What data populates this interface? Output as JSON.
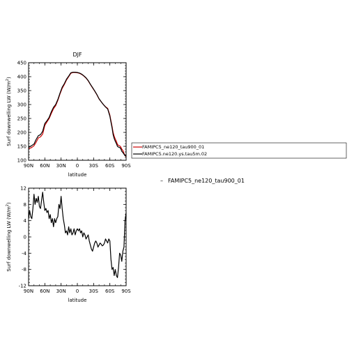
{
  "chart_data": [
    {
      "type": "line",
      "title": "DJF",
      "xlabel": "latitude",
      "ylabel": "Surf downwelling LW (W/m",
      "ylabel_sup": "2",
      "ylabel_end": ")",
      "xlim": [
        -90,
        90
      ],
      "ylim": [
        100,
        450
      ],
      "xticks": [
        -90,
        -60,
        -30,
        0,
        30,
        60,
        90
      ],
      "xtick_labels": [
        "90N",
        "60N",
        "30N",
        "0",
        "30S",
        "60S",
        "90S"
      ],
      "yticks": [
        100,
        150,
        200,
        250,
        300,
        350,
        400,
        450
      ],
      "ytick_labels": [
        "100",
        "150",
        "200",
        "250",
        "300",
        "350",
        "400",
        "450"
      ],
      "grid": false,
      "legend_position": "right-outside",
      "series": [
        {
          "name": "FAMIPC5_ne120_tau900_01",
          "color": "#cc0000",
          "x": [
            -90,
            -85,
            -80,
            -76,
            -72,
            -68,
            -64,
            -60,
            -56,
            -52,
            -48,
            -44,
            -40,
            -36,
            -32,
            -28,
            -24,
            -20,
            -16,
            -12,
            -8,
            -4,
            0,
            4,
            8,
            12,
            16,
            20,
            24,
            28,
            32,
            36,
            40,
            44,
            48,
            52,
            56,
            60,
            62,
            64,
            66,
            68,
            70,
            72,
            74,
            76,
            78,
            80,
            82,
            84,
            86,
            88,
            90
          ],
          "y": [
            142,
            145,
            152,
            165,
            180,
            184,
            194,
            225,
            238,
            250,
            268,
            285,
            296,
            315,
            338,
            358,
            372,
            388,
            400,
            412,
            415,
            415,
            414,
            412,
            408,
            402,
            395,
            385,
            372,
            360,
            348,
            335,
            320,
            310,
            300,
            292,
            286,
            262,
            242,
            222,
            200,
            186,
            176,
            168,
            157,
            153,
            152,
            148,
            140,
            135,
            125,
            118,
            112
          ]
        },
        {
          "name": "FAMIPC5.ne120.ys.tau5m.02",
          "color": "#000000",
          "x": [
            -90,
            -85,
            -80,
            -76,
            -72,
            -68,
            -64,
            -60,
            -56,
            -52,
            -48,
            -44,
            -40,
            -36,
            -32,
            -28,
            -24,
            -20,
            -16,
            -12,
            -8,
            -4,
            0,
            4,
            8,
            12,
            16,
            20,
            24,
            28,
            32,
            36,
            40,
            44,
            48,
            52,
            56,
            60,
            62,
            64,
            66,
            68,
            70,
            72,
            74,
            76,
            78,
            80,
            82,
            84,
            86,
            88,
            90
          ],
          "y": [
            146,
            152,
            158,
            175,
            188,
            192,
            204,
            232,
            242,
            254,
            274,
            290,
            300,
            318,
            341,
            362,
            375,
            391,
            402,
            414,
            416,
            416,
            415,
            413,
            409,
            403,
            396,
            386,
            373,
            361,
            349,
            336,
            321,
            310,
            300,
            291,
            284,
            258,
            237,
            217,
            192,
            178,
            168,
            160,
            150,
            147,
            146,
            142,
            132,
            128,
            122,
            116,
            118
          ]
        }
      ]
    },
    {
      "type": "line",
      "title": "",
      "xlabel": "latitude",
      "ylabel": "Surf downwelling LW (W/m",
      "ylabel_sup": "2",
      "ylabel_end": ")",
      "xlim": [
        -90,
        90
      ],
      "ylim": [
        -12,
        12
      ],
      "xticks": [
        -90,
        -60,
        -30,
        0,
        30,
        60,
        90
      ],
      "xtick_labels": [
        "90N",
        "60N",
        "30N",
        "0",
        "30S",
        "60S",
        "90S"
      ],
      "yticks": [
        -12,
        -8,
        -4,
        0,
        4,
        8,
        12
      ],
      "ytick_labels": [
        "-12",
        "-8",
        "-4",
        "0",
        "4",
        "8",
        "12"
      ],
      "grid": false,
      "legend_position": "right-outside",
      "series": [
        {
          "name": "FAMIPC5_ne120_tau900_01",
          "color": "#000000",
          "x": [
            -90,
            -88,
            -86,
            -84,
            -82,
            -80,
            -78,
            -76,
            -74,
            -72,
            -70,
            -68,
            -66,
            -64,
            -62,
            -60,
            -58,
            -56,
            -54,
            -52,
            -50,
            -48,
            -46,
            -44,
            -42,
            -40,
            -38,
            -36,
            -34,
            -32,
            -30,
            -28,
            -26,
            -24,
            -22,
            -20,
            -18,
            -16,
            -14,
            -12,
            -10,
            -8,
            -6,
            -4,
            -2,
            0,
            2,
            4,
            6,
            8,
            10,
            12,
            14,
            16,
            18,
            20,
            22,
            24,
            26,
            28,
            30,
            32,
            34,
            36,
            38,
            40,
            42,
            44,
            46,
            48,
            50,
            52,
            54,
            56,
            58,
            60,
            62,
            64,
            66,
            68,
            70,
            72,
            74,
            76,
            78,
            80,
            82,
            84,
            86,
            88,
            90
          ],
          "y": [
            4.5,
            6.5,
            5.0,
            4.5,
            7.0,
            10.5,
            8.0,
            9.5,
            8.5,
            10.0,
            7.5,
            7.0,
            9.0,
            11.0,
            8.5,
            6.5,
            7.0,
            6.0,
            6.5,
            4.5,
            5.5,
            3.5,
            4.5,
            2.5,
            4.5,
            3.5,
            4.5,
            5.0,
            8.0,
            7.0,
            10.0,
            7.0,
            4.5,
            3.0,
            1.0,
            1.5,
            0.5,
            2.5,
            1.0,
            2.0,
            0.5,
            1.0,
            2.0,
            0.5,
            1.5,
            2.0,
            1.5,
            2.0,
            1.0,
            1.5,
            0.0,
            1.0,
            0.5,
            -0.5,
            0.0,
            0.5,
            -1.0,
            -2.0,
            -3.0,
            -3.5,
            -2.5,
            -1.5,
            -1.0,
            -1.5,
            -2.5,
            -2.0,
            -1.5,
            -1.8,
            -2.2,
            -2.0,
            -1.5,
            -0.5,
            -1.0,
            -1.5,
            -0.5,
            -1.0,
            -5.5,
            -8.0,
            -7.5,
            -9.5,
            -8.0,
            -9.5,
            -10.0,
            -7.5,
            -4.0,
            -4.5,
            -6.0,
            -3.5,
            -2.5,
            4.0,
            6.0
          ]
        }
      ]
    }
  ],
  "legend": {
    "entries": [
      "FAMIPC5_ne120_tau900_01",
      "FAMIPC5.ne120.ys.tau5m.02"
    ]
  },
  "bottom_legend": {
    "marker": "–",
    "label": "FAMIPC5_ne120_tau900_01"
  }
}
